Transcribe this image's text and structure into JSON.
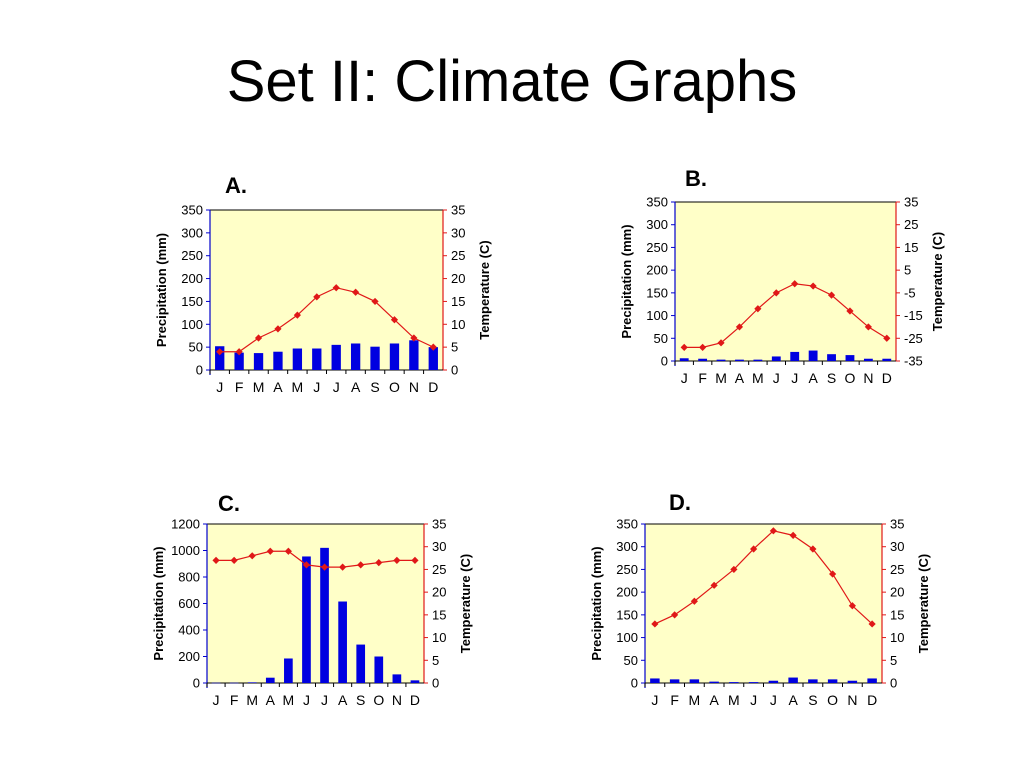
{
  "title": "Set II: Climate Graphs",
  "colors": {
    "plot_bg": "#ffffc8",
    "bar": "#0000e0",
    "line": "#e01818",
    "precip_axis": "#0000cc",
    "temp_axis": "#e01818"
  },
  "chart_data": [
    {
      "id": "A",
      "label": "A.",
      "type": "bar+line",
      "categories": [
        "J",
        "F",
        "M",
        "A",
        "M",
        "J",
        "J",
        "A",
        "S",
        "O",
        "N",
        "D"
      ],
      "ylabel": "Precipitation (mm)",
      "y2label": "Temperature (C)",
      "ylim": [
        0,
        350
      ],
      "yticks": [
        0,
        50,
        100,
        150,
        200,
        250,
        300,
        350
      ],
      "y2lim": [
        0,
        35
      ],
      "y2ticks": [
        0,
        5,
        10,
        15,
        20,
        25,
        30,
        35
      ],
      "series": [
        {
          "values": [
            52,
            38,
            37,
            40,
            47,
            47,
            55,
            58,
            51,
            58,
            65,
            50
          ]
        },
        {
          "values": [
            4,
            4,
            7,
            9,
            12,
            16,
            18,
            17,
            15,
            11,
            7,
            5
          ]
        }
      ]
    },
    {
      "id": "B",
      "label": "B.",
      "type": "bar+line",
      "categories": [
        "J",
        "F",
        "M",
        "A",
        "M",
        "J",
        "J",
        "A",
        "S",
        "O",
        "N",
        "D"
      ],
      "ylabel": "Precipitation (mm)",
      "y2label": "Temperature (C)",
      "ylim": [
        0,
        350
      ],
      "yticks": [
        0,
        50,
        100,
        150,
        200,
        250,
        300,
        350
      ],
      "y2lim": [
        -35,
        35
      ],
      "y2ticks": [
        -35,
        -25,
        -15,
        -5,
        5,
        15,
        25,
        35
      ],
      "series": [
        {
          "values": [
            6,
            5,
            3,
            3,
            3,
            10,
            20,
            23,
            15,
            13,
            5,
            5
          ]
        },
        {
          "values": [
            -29,
            -29,
            -27,
            -20,
            -12,
            -5,
            -1,
            -2,
            -6,
            -13,
            -20,
            -25
          ]
        }
      ]
    },
    {
      "id": "C",
      "label": "C.",
      "type": "bar+line",
      "categories": [
        "J",
        "F",
        "M",
        "A",
        "M",
        "J",
        "J",
        "A",
        "S",
        "O",
        "N",
        "D"
      ],
      "ylabel": "Precipitation (mm)",
      "y2label": "Temperature (C)",
      "ylim": [
        0,
        1200
      ],
      "yticks": [
        0,
        200,
        400,
        600,
        800,
        1000,
        1200
      ],
      "y2lim": [
        0,
        35
      ],
      "y2ticks": [
        0,
        5,
        10,
        15,
        20,
        25,
        30,
        35
      ],
      "series": [
        {
          "values": [
            2,
            2,
            5,
            40,
            185,
            955,
            1020,
            615,
            290,
            200,
            65,
            20
          ]
        },
        {
          "values": [
            27,
            27,
            28,
            29,
            29,
            26,
            25.5,
            25.5,
            26,
            26.5,
            27,
            27
          ]
        }
      ]
    },
    {
      "id": "D",
      "label": "D.",
      "type": "bar+line",
      "categories": [
        "J",
        "F",
        "M",
        "A",
        "M",
        "J",
        "J",
        "A",
        "S",
        "O",
        "N",
        "D"
      ],
      "ylabel": "Precipitation (mm)",
      "y2label": "Temperature (C)",
      "ylim": [
        0,
        350
      ],
      "yticks": [
        0,
        50,
        100,
        150,
        200,
        250,
        300,
        350
      ],
      "y2lim": [
        0,
        35
      ],
      "y2ticks": [
        0,
        5,
        10,
        15,
        20,
        25,
        30,
        35
      ],
      "series": [
        {
          "values": [
            10,
            8,
            8,
            3,
            2,
            2,
            5,
            12,
            8,
            8,
            5,
            10
          ]
        },
        {
          "values": [
            13,
            15,
            18,
            21.5,
            25,
            29.5,
            33.5,
            32.5,
            29.5,
            24,
            17,
            13
          ]
        }
      ]
    }
  ]
}
